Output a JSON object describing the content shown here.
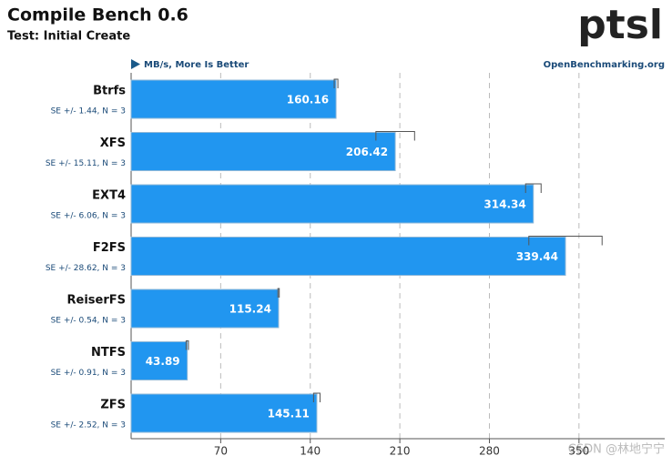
{
  "chart_data": {
    "type": "hbar",
    "title": "Compile Bench 0.6",
    "subtitle": "Test: Initial Create",
    "unit_label": "MB/s, More Is Better",
    "source": "OpenBenchmarking.org",
    "logo": "ptsl",
    "watermark": "CSDN @林地宁宁",
    "categories": [
      "Btrfs",
      "XFS",
      "EXT4",
      "F2FS",
      "ReiserFS",
      "NTFS",
      "ZFS"
    ],
    "values": [
      160.16,
      206.42,
      314.34,
      339.44,
      115.24,
      43.89,
      145.11
    ],
    "errors": [
      1.44,
      15.11,
      6.06,
      28.62,
      0.54,
      0.91,
      2.52
    ],
    "error_labels": [
      "SE +/- 1.44, N = 3",
      "SE +/- 15.11, N = 3",
      "SE +/- 6.06, N = 3",
      "SE +/- 28.62, N = 3",
      "SE +/- 0.54, N = 3",
      "SE +/- 0.91, N = 3",
      "SE +/- 2.52, N = 3"
    ],
    "color": "#2196f0",
    "xlim": [
      0,
      417
    ],
    "xticks": [
      70,
      140,
      210,
      280,
      350
    ],
    "grid": true
  }
}
